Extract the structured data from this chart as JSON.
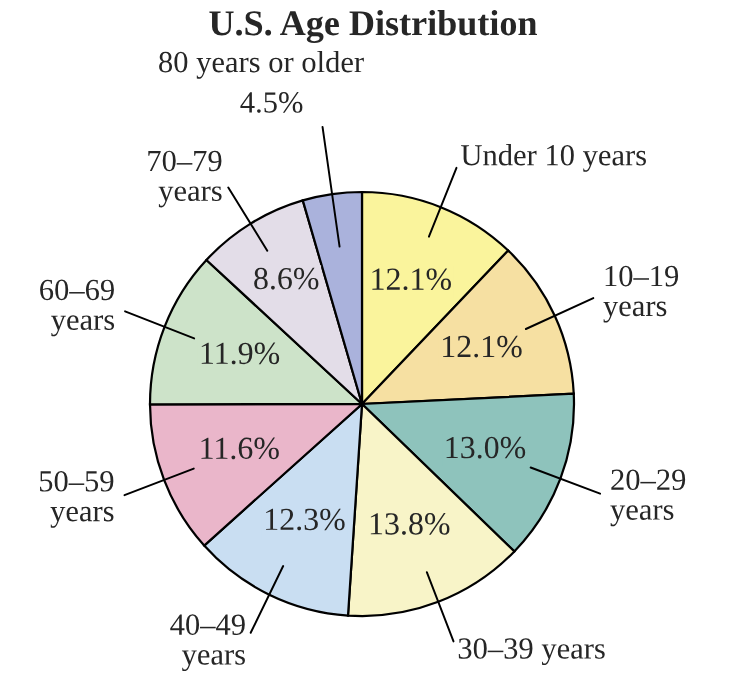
{
  "chart_data": {
    "type": "pie",
    "title": "U.S. Age Distribution",
    "categories": [
      "Under 10 years",
      "10–19\nyears",
      "20–29\nyears",
      "30–39 years",
      "40–49\nyears",
      "50–59\nyears",
      "60–69\nyears",
      "70–79\nyears",
      "80 years or older"
    ],
    "values": [
      12.1,
      12.1,
      13.0,
      13.8,
      12.3,
      11.6,
      11.9,
      8.6,
      4.5
    ],
    "value_labels": [
      "12.1%",
      "12.1%",
      "13.0%",
      "13.8%",
      "12.3%",
      "11.6%",
      "11.9%",
      "8.6%",
      "4.5%"
    ],
    "colors": [
      "#faf49c",
      "#f6e0a2",
      "#8ec3bc",
      "#f8f4c8",
      "#c9def2",
      "#eab6ca",
      "#cde3c9",
      "#e3dde8",
      "#aab2dc"
    ]
  }
}
